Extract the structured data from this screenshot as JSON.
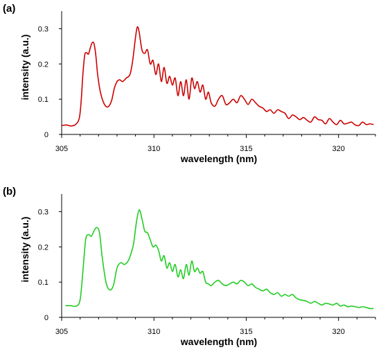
{
  "chart_data": [
    {
      "type": "line",
      "panel_label": "(a)",
      "xlabel": "wavelength (nm)",
      "ylabel": "intensity (a.u.)",
      "xlim": [
        305,
        322
      ],
      "ylim": [
        0,
        0.35
      ],
      "xticks": [
        305,
        310,
        315,
        320
      ],
      "yticks": [
        0,
        0.1,
        0.2,
        0.3
      ],
      "grid": false,
      "color": "#cc0000",
      "series": [
        {
          "x": [
            305.0,
            305.25,
            305.5,
            305.75,
            305.95,
            306.05,
            306.15,
            306.25,
            306.35,
            306.45,
            306.55,
            306.65,
            306.75,
            306.85,
            306.95,
            307.1,
            307.3,
            307.5,
            307.7,
            307.85,
            308.0,
            308.15,
            308.3,
            308.5,
            308.7,
            308.85,
            309.0,
            309.1,
            309.2,
            309.35,
            309.5,
            309.65,
            309.8,
            309.95,
            310.1,
            310.25,
            310.4,
            310.55,
            310.7,
            310.85,
            311.0,
            311.15,
            311.3,
            311.45,
            311.6,
            311.75,
            311.9,
            312.05,
            312.2,
            312.35,
            312.5,
            312.65,
            312.8,
            312.95,
            313.1,
            313.3,
            313.5,
            313.7,
            313.9,
            314.1,
            314.3,
            314.5,
            314.7,
            314.9,
            315.1,
            315.3,
            315.5,
            315.7,
            315.9,
            316.1,
            316.3,
            316.5,
            316.7,
            316.9,
            317.1,
            317.3,
            317.5,
            317.7,
            317.9,
            318.1,
            318.3,
            318.5,
            318.7,
            318.9,
            319.1,
            319.3,
            319.5,
            319.7,
            319.9,
            320.1,
            320.3,
            320.5,
            320.7,
            320.9,
            321.1,
            321.3,
            321.5,
            321.7,
            321.9
          ],
          "y": [
            0.025,
            0.027,
            0.024,
            0.028,
            0.045,
            0.09,
            0.17,
            0.225,
            0.232,
            0.228,
            0.245,
            0.26,
            0.258,
            0.225,
            0.17,
            0.12,
            0.087,
            0.078,
            0.095,
            0.13,
            0.15,
            0.155,
            0.15,
            0.16,
            0.17,
            0.21,
            0.275,
            0.305,
            0.29,
            0.24,
            0.23,
            0.24,
            0.2,
            0.21,
            0.17,
            0.2,
            0.15,
            0.19,
            0.145,
            0.165,
            0.14,
            0.16,
            0.11,
            0.15,
            0.11,
            0.155,
            0.1,
            0.16,
            0.13,
            0.15,
            0.12,
            0.14,
            0.1,
            0.12,
            0.09,
            0.08,
            0.1,
            0.11,
            0.085,
            0.09,
            0.1,
            0.09,
            0.11,
            0.1,
            0.085,
            0.1,
            0.09,
            0.08,
            0.075,
            0.065,
            0.07,
            0.06,
            0.07,
            0.065,
            0.06,
            0.045,
            0.055,
            0.05,
            0.042,
            0.048,
            0.04,
            0.035,
            0.05,
            0.042,
            0.04,
            0.03,
            0.045,
            0.035,
            0.028,
            0.04,
            0.03,
            0.032,
            0.035,
            0.027,
            0.025,
            0.035,
            0.028,
            0.03,
            0.028
          ]
        }
      ]
    },
    {
      "type": "line",
      "panel_label": "(b)",
      "xlabel": "wavelength (nm)",
      "ylabel": "intensity (a.u.)",
      "xlim": [
        305,
        322
      ],
      "ylim": [
        0,
        0.35
      ],
      "xticks": [
        305,
        310,
        315,
        320
      ],
      "yticks": [
        0,
        0.1,
        0.2,
        0.3
      ],
      "grid": false,
      "color": "#22cc22",
      "series": [
        {
          "x": [
            305.2,
            305.5,
            305.8,
            306.0,
            306.15,
            306.3,
            306.45,
            306.6,
            306.75,
            306.9,
            307.05,
            307.2,
            307.4,
            307.6,
            307.8,
            308.0,
            308.2,
            308.4,
            308.6,
            308.75,
            308.9,
            309.05,
            309.2,
            309.35,
            309.5,
            309.65,
            309.8,
            309.95,
            310.1,
            310.25,
            310.4,
            310.55,
            310.7,
            310.85,
            311.0,
            311.15,
            311.3,
            311.45,
            311.6,
            311.75,
            311.9,
            312.05,
            312.2,
            312.35,
            312.5,
            312.65,
            312.8,
            312.95,
            313.1,
            313.3,
            313.5,
            313.7,
            313.9,
            314.1,
            314.3,
            314.5,
            314.7,
            314.9,
            315.1,
            315.3,
            315.5,
            315.7,
            315.9,
            316.1,
            316.3,
            316.5,
            316.7,
            316.9,
            317.1,
            317.3,
            317.5,
            317.7,
            317.9,
            318.1,
            318.3,
            318.5,
            318.7,
            318.9,
            319.1,
            319.3,
            319.5,
            319.7,
            319.9,
            320.1,
            320.3,
            320.5,
            320.7,
            320.9,
            321.1,
            321.3,
            321.5,
            321.7,
            321.9
          ],
          "y": [
            0.033,
            0.033,
            0.032,
            0.05,
            0.13,
            0.22,
            0.235,
            0.23,
            0.245,
            0.255,
            0.24,
            0.17,
            0.1,
            0.078,
            0.09,
            0.14,
            0.155,
            0.15,
            0.16,
            0.18,
            0.21,
            0.27,
            0.305,
            0.28,
            0.245,
            0.24,
            0.22,
            0.2,
            0.205,
            0.19,
            0.16,
            0.175,
            0.14,
            0.155,
            0.13,
            0.15,
            0.115,
            0.135,
            0.11,
            0.15,
            0.12,
            0.16,
            0.13,
            0.14,
            0.125,
            0.13,
            0.1,
            0.095,
            0.09,
            0.1,
            0.105,
            0.095,
            0.09,
            0.095,
            0.1,
            0.095,
            0.105,
            0.1,
            0.09,
            0.095,
            0.085,
            0.08,
            0.075,
            0.08,
            0.07,
            0.065,
            0.07,
            0.06,
            0.065,
            0.06,
            0.065,
            0.055,
            0.05,
            0.048,
            0.045,
            0.04,
            0.045,
            0.04,
            0.035,
            0.04,
            0.038,
            0.035,
            0.04,
            0.032,
            0.035,
            0.03,
            0.032,
            0.03,
            0.028,
            0.03,
            0.028,
            0.025,
            0.025
          ]
        }
      ]
    }
  ]
}
